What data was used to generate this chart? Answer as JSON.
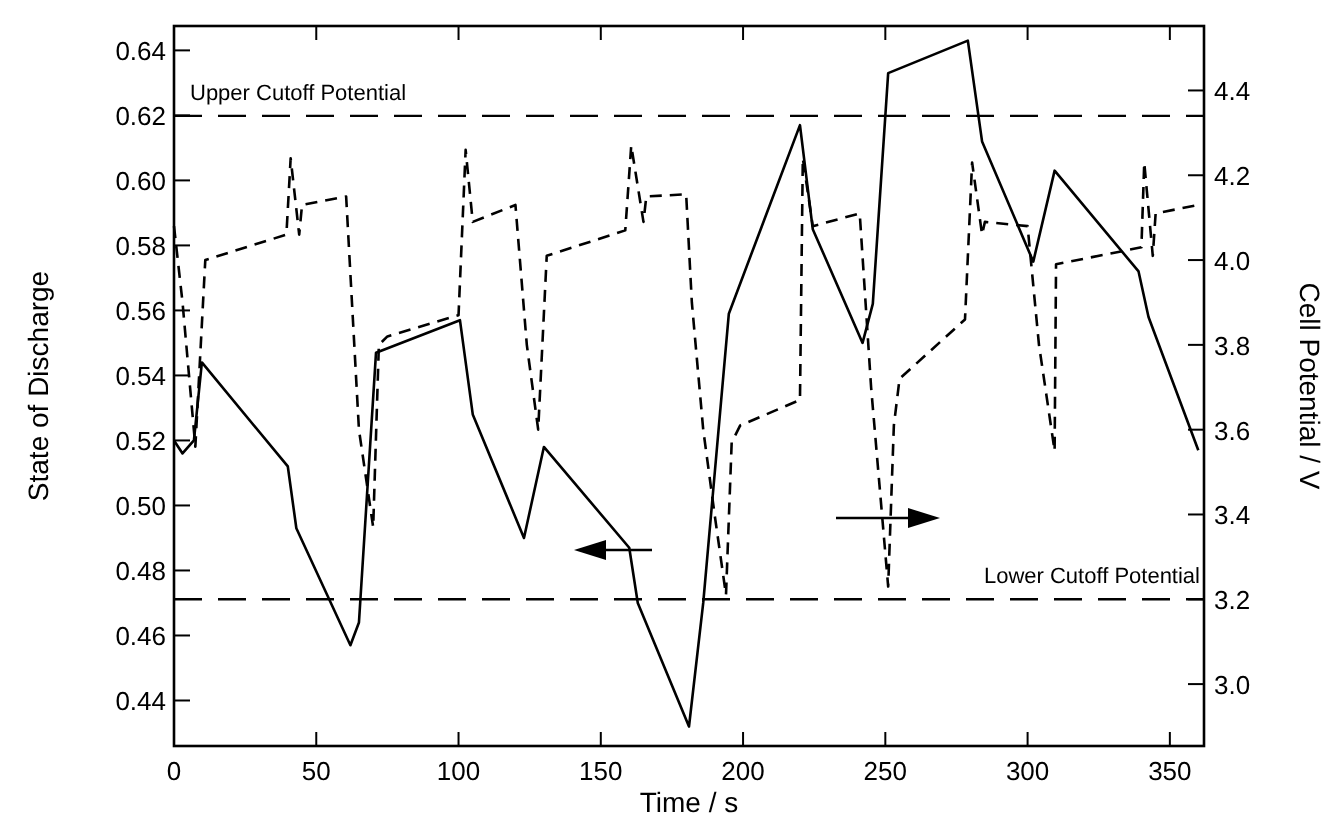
{
  "chart_data": {
    "type": "line",
    "xlabel": "Time / s",
    "ylabel": "State of Discharge",
    "y2label": "Cell Potential / V",
    "xlim": [
      0,
      362
    ],
    "xticks": [
      0,
      50,
      100,
      150,
      200,
      250,
      300,
      350
    ],
    "ylim": [
      0.426,
      0.6475
    ],
    "yticks": [
      {
        "value": 0.44,
        "label": "0.44"
      },
      {
        "value": 0.46,
        "label": "0.46"
      },
      {
        "value": 0.48,
        "label": "0.48"
      },
      {
        "value": 0.5,
        "label": "0.50"
      },
      {
        "value": 0.52,
        "label": "0.52"
      },
      {
        "value": 0.54,
        "label": "0.54"
      },
      {
        "value": 0.56,
        "label": "0.56"
      },
      {
        "value": 0.58,
        "label": "0.58"
      },
      {
        "value": 0.6,
        "label": "0.60"
      },
      {
        "value": 0.62,
        "label": "0.62"
      },
      {
        "value": 0.64,
        "label": "0.64"
      }
    ],
    "y2lim": [
      2.854,
      4.552
    ],
    "y2ticks": [
      {
        "value": 3.0,
        "label": "3.0"
      },
      {
        "value": 3.2,
        "label": "3.2"
      },
      {
        "value": 3.4,
        "label": "3.4"
      },
      {
        "value": 3.6,
        "label": "3.6"
      },
      {
        "value": 3.8,
        "label": "3.8"
      },
      {
        "value": 4.0,
        "label": "4.0"
      },
      {
        "value": 4.2,
        "label": "4.2"
      },
      {
        "value": 4.4,
        "label": "4.4"
      }
    ],
    "grid": false,
    "series": [
      {
        "color": "#000000",
        "line_style": "solid",
        "x": [
          0,
          3,
          7,
          9.8,
          40,
          43,
          62,
          65,
          71,
          100.5,
          105,
          123,
          130,
          160,
          163,
          181,
          186,
          195,
          220,
          224.5,
          242,
          245.6,
          251,
          279,
          284,
          302,
          309.5,
          339,
          342.5,
          360
        ],
        "values": [
          0.52,
          0.516,
          0.52,
          0.544,
          0.512,
          0.493,
          0.457,
          0.464,
          0.547,
          0.557,
          0.528,
          0.49,
          0.518,
          0.487,
          0.47,
          0.432,
          0.47,
          0.559,
          0.617,
          0.585,
          0.55,
          0.562,
          0.633,
          0.643,
          0.612,
          0.575,
          0.603,
          0.572,
          0.558,
          0.517
        ]
      },
      {
        "color": "#000000",
        "line_style": "dashed",
        "axis": "y2",
        "x": [
          0,
          3,
          7.5,
          11,
          39.5,
          41,
          44,
          45,
          60.5,
          65,
          70,
          72,
          75,
          100,
          102.5,
          105,
          120,
          124,
          128,
          131,
          158.6,
          160.7,
          165,
          166,
          180,
          182,
          186,
          190,
          194,
          196,
          199,
          220,
          221,
          224.5,
          241,
          245,
          251,
          253,
          255,
          278,
          280.5,
          284,
          285,
          300,
          304,
          309.5,
          310,
          340,
          341,
          344,
          345,
          360
        ],
        "values": [
          4.08,
          3.9,
          3.56,
          4.0,
          4.06,
          4.24,
          4.06,
          4.13,
          4.15,
          3.6,
          3.37,
          3.8,
          3.82,
          3.87,
          4.26,
          4.09,
          4.13,
          3.8,
          3.6,
          4.01,
          4.07,
          4.27,
          4.09,
          4.15,
          4.155,
          3.9,
          3.6,
          3.4,
          3.21,
          3.57,
          3.61,
          3.67,
          4.24,
          4.08,
          4.11,
          3.7,
          3.23,
          3.61,
          3.72,
          3.86,
          4.23,
          4.06,
          4.09,
          4.08,
          3.8,
          3.55,
          3.99,
          4.03,
          4.23,
          4.01,
          4.11,
          4.13
        ]
      }
    ],
    "ref_lines": [
      {
        "axis": "y2",
        "value": 4.34,
        "label": "Upper Cutoff Potential",
        "line_style": "dashed"
      },
      {
        "axis": "y2",
        "value": 3.2,
        "label": "Lower Cutoff Potential",
        "line_style": "dashed"
      }
    ]
  }
}
